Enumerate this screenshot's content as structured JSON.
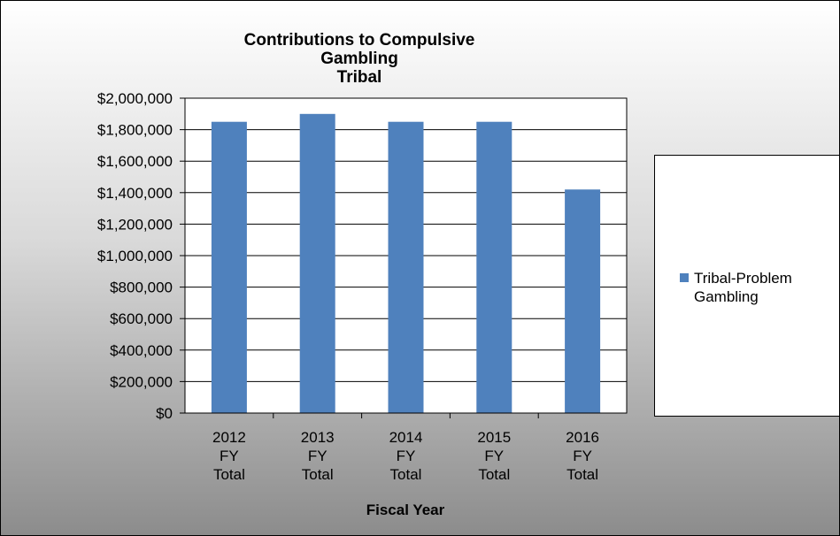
{
  "chart_data": {
    "type": "bar",
    "title_lines": [
      "Contributions to Compulsive Gambling",
      "Tribal"
    ],
    "xlabel": "Fiscal Year",
    "ylabel": "",
    "categories": [
      [
        "2012",
        "FY",
        "Total"
      ],
      [
        "2013",
        "FY",
        "Total"
      ],
      [
        "2014",
        "FY",
        "Total"
      ],
      [
        "2015",
        "FY",
        "Total"
      ],
      [
        "2016",
        "FY",
        "Total"
      ]
    ],
    "series": [
      {
        "name": "Tribal-Problem Gambling",
        "color": "#4f81bd",
        "values": [
          1850000,
          1900000,
          1850000,
          1850000,
          1420000
        ]
      }
    ],
    "ylim": [
      0,
      2000000
    ],
    "yticks": [
      0,
      200000,
      400000,
      600000,
      800000,
      1000000,
      1200000,
      1400000,
      1600000,
      1800000,
      2000000
    ],
    "ytick_labels": [
      "$0",
      "$200,000",
      "$400,000",
      "$600,000",
      "$800,000",
      "$1,000,000",
      "$1,200,000",
      "$1,400,000",
      "$1,600,000",
      "$1,800,000",
      "$2,000,000"
    ],
    "grid": true,
    "legend_position": "right"
  }
}
